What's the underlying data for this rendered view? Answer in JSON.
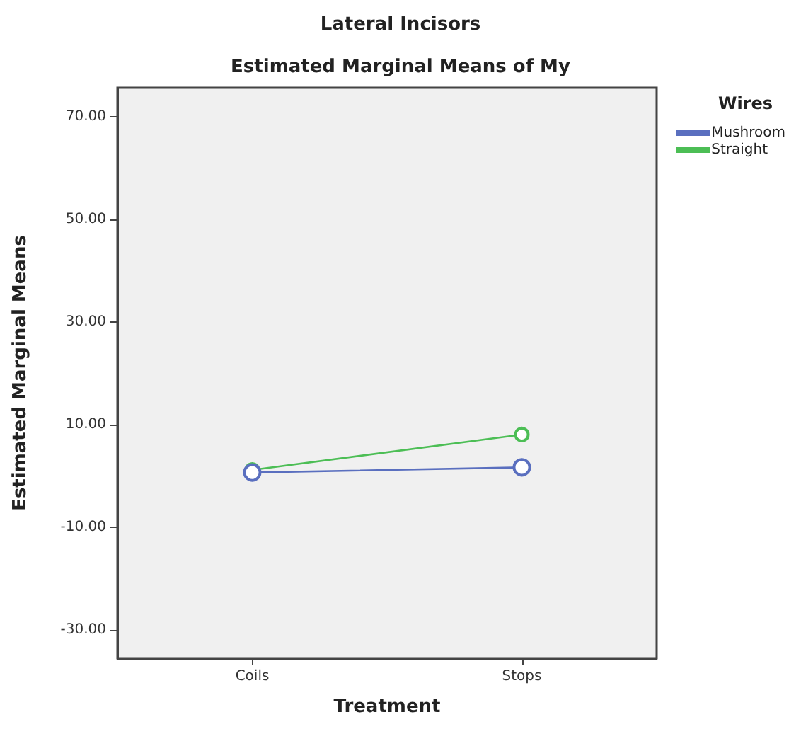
{
  "chart_data": {
    "type": "line",
    "title": "Lateral Incisors",
    "subtitle": "Estimated Marginal Means of My",
    "xlabel": "Treatment",
    "ylabel": "Estimated Marginal Means",
    "legend_title": "Wires",
    "categories": [
      "Coils",
      "Stops"
    ],
    "series": [
      {
        "name": "Mushroom",
        "color": "#5a6fbf",
        "values": [
          0.7,
          1.7
        ]
      },
      {
        "name": "Straight",
        "color": "#4cbe55",
        "values": [
          1.2,
          8.1
        ]
      }
    ],
    "ylim": [
      -35.5,
      75.7
    ],
    "yticks": [
      {
        "value": -30,
        "label": "-30.00"
      },
      {
        "value": -10,
        "label": "-10.00"
      },
      {
        "value": 10,
        "label": "10.00"
      },
      {
        "value": 30,
        "label": "30.00"
      },
      {
        "value": 50,
        "label": "50.00"
      },
      {
        "value": 70,
        "label": "70.00"
      }
    ],
    "grid": false,
    "legend": "top right",
    "marker": "circle",
    "line_style": "solid"
  }
}
